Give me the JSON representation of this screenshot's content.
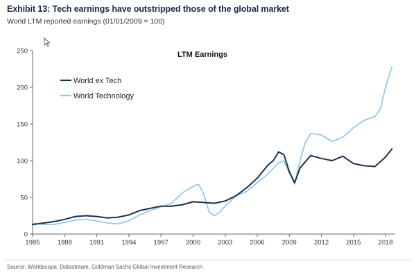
{
  "header": {
    "title": "Exhibit 13: Tech earnings have outstripped those of the global market",
    "subtitle": "World LTM reported earnings (01/01/2009 = 100)"
  },
  "footer": {
    "source": "Source: Worldscope, Datastream, Goldman Sachs Global Investment Research"
  },
  "icons": {
    "cursor": "mouse-pointer-icon"
  },
  "chart_data": {
    "type": "line",
    "title": "LTM Earnings",
    "xlabel": "",
    "ylabel": "",
    "xlim": [
      1985,
      2018.9
    ],
    "ylim": [
      0,
      250
    ],
    "x_ticks": [
      1985,
      1988,
      1991,
      1994,
      1997,
      2000,
      2003,
      2006,
      2009,
      2012,
      2015,
      2018
    ],
    "y_ticks": [
      0,
      50,
      100,
      150,
      200,
      250
    ],
    "grid": false,
    "legend_position": "top-left",
    "series": [
      {
        "name": "World ex Tech",
        "color": "#1b2f4d",
        "x": [
          1985,
          1986,
          1987,
          1988,
          1989,
          1990,
          1991,
          1992,
          1993,
          1994,
          1995,
          1996,
          1997,
          1998,
          1999,
          2000,
          2001,
          2002,
          2003,
          2004,
          2005,
          2006,
          2007,
          2007.5,
          2008,
          2008.5,
          2009,
          2009.5,
          2010,
          2011,
          2012,
          2013,
          2014,
          2015,
          2016,
          2017,
          2018,
          2018.6
        ],
        "values": [
          13,
          15,
          17,
          20,
          24,
          25,
          24,
          22,
          23,
          26,
          32,
          35,
          38,
          38,
          40,
          44,
          43,
          42,
          45,
          52,
          63,
          76,
          94,
          100,
          112,
          108,
          85,
          70,
          90,
          107,
          103,
          100,
          106,
          96,
          93,
          92,
          105,
          116
        ]
      },
      {
        "name": "World Technology",
        "color": "#8ec7e6",
        "x": [
          1985,
          1986,
          1987,
          1988,
          1989,
          1990,
          1991,
          1992,
          1993,
          1994,
          1995,
          1996,
          1997,
          1998,
          1999,
          2000,
          2000.5,
          2001,
          2001.5,
          2002,
          2002.5,
          2003,
          2004,
          2005,
          2006,
          2007,
          2008,
          2008.5,
          2009,
          2009.5,
          2010,
          2010.5,
          2011,
          2012,
          2013,
          2014,
          2015,
          2016,
          2017,
          2017.5,
          2018,
          2018.6
        ],
        "values": [
          15,
          13,
          13,
          16,
          19,
          20,
          18,
          15,
          14,
          18,
          26,
          32,
          37,
          42,
          56,
          65,
          68,
          55,
          30,
          25,
          30,
          38,
          52,
          58,
          70,
          82,
          97,
          100,
          83,
          68,
          100,
          125,
          137,
          135,
          126,
          132,
          145,
          155,
          160,
          170,
          200,
          228
        ]
      }
    ]
  }
}
